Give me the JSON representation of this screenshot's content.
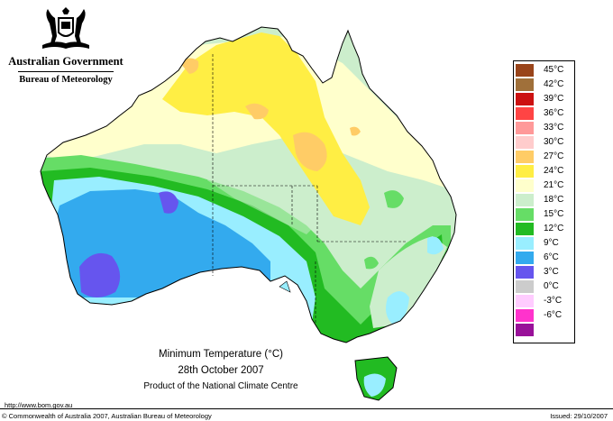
{
  "header": {
    "government": "Australian Government",
    "bureau": "Bureau of Meteorology",
    "crest_icon": "coat-of-arms-icon"
  },
  "map": {
    "title": "Minimum Temperature (°C)",
    "date": "28th October 2007",
    "product": "Product of the National Climate Centre"
  },
  "legend": {
    "items": [
      {
        "label": "45°C",
        "color": "#99441a"
      },
      {
        "label": "42°C",
        "color": "#a0703a"
      },
      {
        "label": "39°C",
        "color": "#cc1111"
      },
      {
        "label": "36°C",
        "color": "#ff4444"
      },
      {
        "label": "33°C",
        "color": "#ff9999"
      },
      {
        "label": "30°C",
        "color": "#ffcccc"
      },
      {
        "label": "27°C",
        "color": "#ffcc66"
      },
      {
        "label": "24°C",
        "color": "#ffee44"
      },
      {
        "label": "21°C",
        "color": "#ffffcc"
      },
      {
        "label": "18°C",
        "color": "#cceecc"
      },
      {
        "label": "15°C",
        "color": "#66dd66"
      },
      {
        "label": "12°C",
        "color": "#22bb22"
      },
      {
        "label": "9°C",
        "color": "#99eeff"
      },
      {
        "label": "6°C",
        "color": "#33aaee"
      },
      {
        "label": "3°C",
        "color": "#6655ee"
      },
      {
        "label": "0°C",
        "color": "#cccccc"
      },
      {
        "label": "-3°C",
        "color": "#ffccff"
      },
      {
        "label": "-6°C",
        "color": "#ff33cc"
      },
      {
        "label": "",
        "color": "#991199"
      }
    ]
  },
  "footer": {
    "url": "http://www.bom.gov.au",
    "copyright": "© Commonwealth of Australia 2007, Australian Bureau of Meteorology",
    "issued": "Issued: 29/10/2007"
  }
}
